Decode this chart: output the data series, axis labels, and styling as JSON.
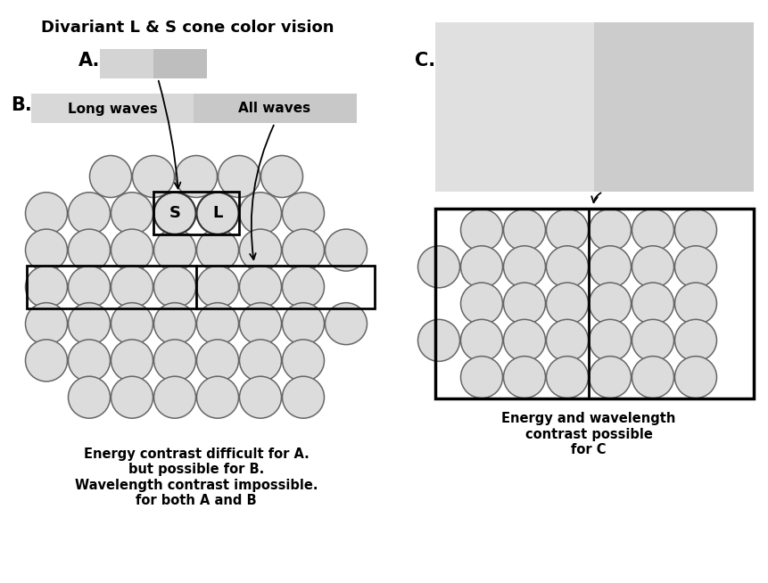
{
  "title": "Divariant L & S cone color vision",
  "bg_color": "#ffffff",
  "circle_fill": "#dcdcdc",
  "circle_edge": "#666666",
  "dark_circle_fill": "#c8c8c8",
  "text_caption_left": "Energy contrast difficult for A.\nbut possible for B.\nWavelength contrast impossible.\nfor both A and B",
  "text_caption_right": "Energy and wavelength\ncontrast possible\nfor C",
  "A_rect_left_color": "#d4d4d4",
  "A_rect_right_color": "#bebebe",
  "B_rect_left_color": "#d8d8d8",
  "B_rect_right_color": "#c8c8c8",
  "C_rect_left_color": "#e0e0e0",
  "C_rect_right_color": "#cccccc"
}
